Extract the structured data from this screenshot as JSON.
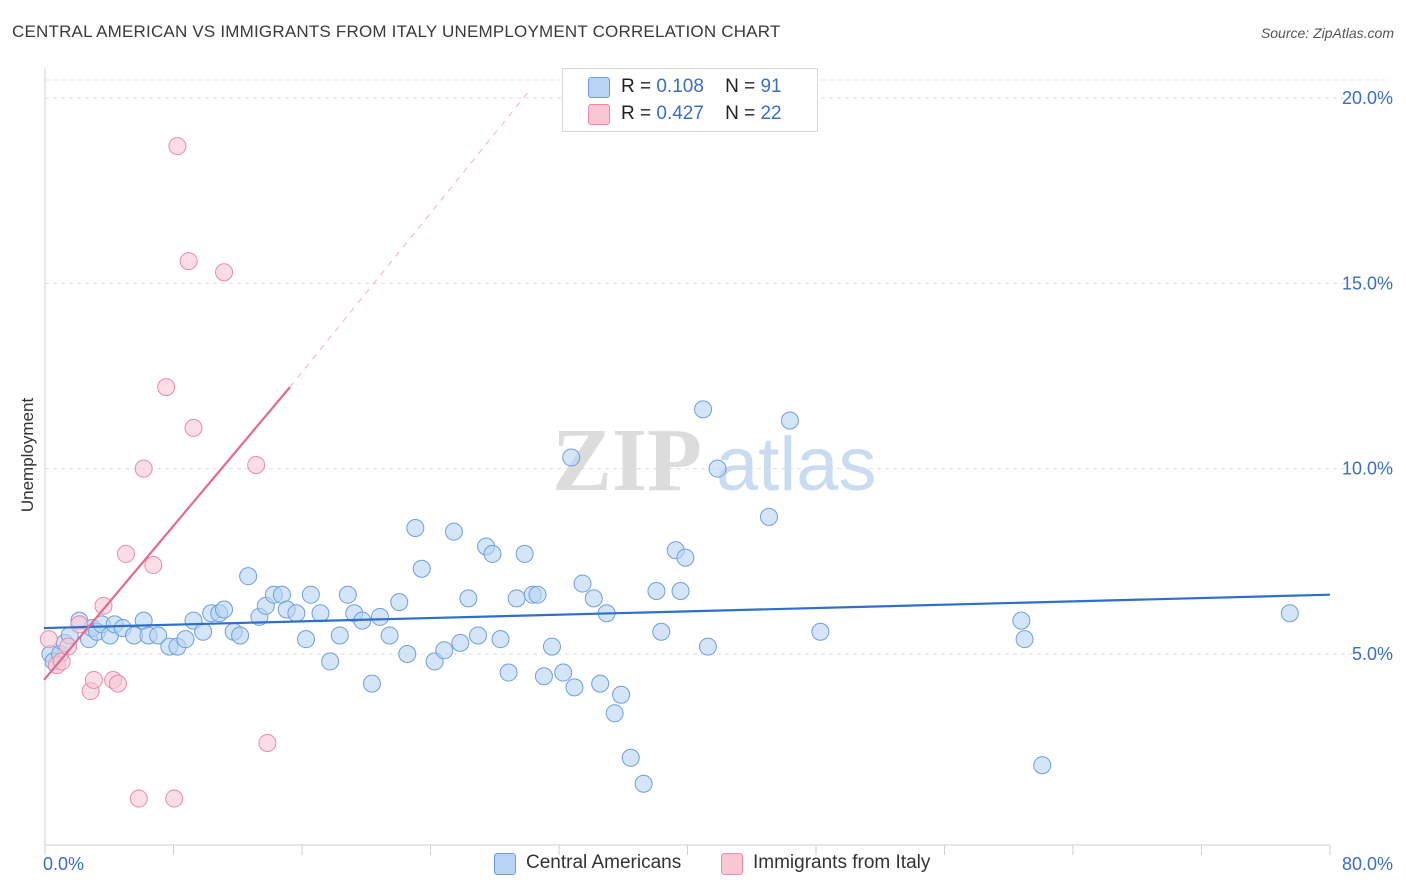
{
  "title": "CENTRAL AMERICAN VS IMMIGRANTS FROM ITALY UNEMPLOYMENT CORRELATION CHART",
  "source": "Source: ZipAtlas.com",
  "watermark": {
    "zip": "ZIP",
    "atlas": "atlas"
  },
  "legend": {
    "rows": [
      {
        "r_label": "R =",
        "r_value": "0.108",
        "n_label": "N =",
        "n_value": "91"
      },
      {
        "r_label": "R =",
        "r_value": "0.427",
        "n_label": "N =",
        "n_value": "22"
      }
    ]
  },
  "colors": {
    "blue_fill": "#b8d3f3",
    "blue_stroke": "#6e9fdc",
    "blue_line": "#2f6fcc",
    "pink_fill": "#f9c6d4",
    "pink_stroke": "#ec8aa8",
    "pink_line": "#e46a92",
    "axis_text": "#3a6fc4"
  },
  "chart_data": {
    "type": "scatter",
    "title": "CENTRAL AMERICAN VS IMMIGRANTS FROM ITALY UNEMPLOYMENT CORRELATION CHART",
    "xlabel": "",
    "ylabel": "Unemployment",
    "xlim": [
      0,
      80
    ],
    "ylim": [
      0.5,
      20.5
    ],
    "x_tick_labels": [
      "0.0%",
      "80.0%"
    ],
    "y_ticks": [
      5,
      10,
      15,
      20
    ],
    "y_tick_labels": [
      "5.0%",
      "10.0%",
      "15.0%",
      "20.0%"
    ],
    "series": [
      {
        "name": "Central Americans",
        "R": 0.108,
        "N": 91,
        "trend": {
          "x": [
            0,
            80
          ],
          "y": [
            5.7,
            6.6
          ]
        },
        "points": [
          [
            0.4,
            5.0
          ],
          [
            0.6,
            4.8
          ],
          [
            1.0,
            5.0
          ],
          [
            1.3,
            5.3
          ],
          [
            1.6,
            5.5
          ],
          [
            2.2,
            5.9
          ],
          [
            2.8,
            5.4
          ],
          [
            3.0,
            5.7
          ],
          [
            3.3,
            5.6
          ],
          [
            3.6,
            5.8
          ],
          [
            4.1,
            5.5
          ],
          [
            4.4,
            5.8
          ],
          [
            4.9,
            5.7
          ],
          [
            5.6,
            5.5
          ],
          [
            6.2,
            5.9
          ],
          [
            6.5,
            5.5
          ],
          [
            7.1,
            5.5
          ],
          [
            7.8,
            5.2
          ],
          [
            8.3,
            5.2
          ],
          [
            8.8,
            5.4
          ],
          [
            9.3,
            5.9
          ],
          [
            9.9,
            5.6
          ],
          [
            10.4,
            6.1
          ],
          [
            10.9,
            6.1
          ],
          [
            11.2,
            6.2
          ],
          [
            11.8,
            5.6
          ],
          [
            12.2,
            5.5
          ],
          [
            12.7,
            7.1
          ],
          [
            13.4,
            6.0
          ],
          [
            13.8,
            6.3
          ],
          [
            14.3,
            6.6
          ],
          [
            14.8,
            6.6
          ],
          [
            15.1,
            6.2
          ],
          [
            15.7,
            6.1
          ],
          [
            16.3,
            5.4
          ],
          [
            16.6,
            6.6
          ],
          [
            17.2,
            6.1
          ],
          [
            17.8,
            4.8
          ],
          [
            18.4,
            5.5
          ],
          [
            18.9,
            6.6
          ],
          [
            19.3,
            6.1
          ],
          [
            19.8,
            5.9
          ],
          [
            20.4,
            4.2
          ],
          [
            20.9,
            6.0
          ],
          [
            21.5,
            5.5
          ],
          [
            22.1,
            6.4
          ],
          [
            22.6,
            5.0
          ],
          [
            23.1,
            8.4
          ],
          [
            23.5,
            7.3
          ],
          [
            24.3,
            4.8
          ],
          [
            24.9,
            5.1
          ],
          [
            25.5,
            8.3
          ],
          [
            25.9,
            5.3
          ],
          [
            26.4,
            6.5
          ],
          [
            27.0,
            5.5
          ],
          [
            27.5,
            7.9
          ],
          [
            27.9,
            7.7
          ],
          [
            28.4,
            5.4
          ],
          [
            28.9,
            4.5
          ],
          [
            29.4,
            6.5
          ],
          [
            29.9,
            7.7
          ],
          [
            30.4,
            6.6
          ],
          [
            30.7,
            6.6
          ],
          [
            31.1,
            4.4
          ],
          [
            31.6,
            5.2
          ],
          [
            32.3,
            4.5
          ],
          [
            32.8,
            10.3
          ],
          [
            33.0,
            4.1
          ],
          [
            33.5,
            6.9
          ],
          [
            34.2,
            6.5
          ],
          [
            34.6,
            4.2
          ],
          [
            35.0,
            6.1
          ],
          [
            35.5,
            3.4
          ],
          [
            35.9,
            3.9
          ],
          [
            36.5,
            2.2
          ],
          [
            37.3,
            1.5
          ],
          [
            38.1,
            6.7
          ],
          [
            38.4,
            5.6
          ],
          [
            39.3,
            7.8
          ],
          [
            39.6,
            6.7
          ],
          [
            39.9,
            7.6
          ],
          [
            41.0,
            11.6
          ],
          [
            41.3,
            5.2
          ],
          [
            41.9,
            10.0
          ],
          [
            45.1,
            8.7
          ],
          [
            46.4,
            11.3
          ],
          [
            48.3,
            5.6
          ],
          [
            60.8,
            5.9
          ],
          [
            61.0,
            5.4
          ],
          [
            62.1,
            2.0
          ],
          [
            77.5,
            6.1
          ]
        ]
      },
      {
        "name": "Immigrants from Italy",
        "R": 0.427,
        "N": 22,
        "trend_solid": {
          "x": [
            0,
            15.3
          ],
          "y": [
            4.3,
            12.2
          ]
        },
        "trend_dashed": {
          "x": [
            15.3,
            30.2
          ],
          "y": [
            12.2,
            20.2
          ]
        },
        "points": [
          [
            0.3,
            5.4
          ],
          [
            0.8,
            4.7
          ],
          [
            1.1,
            4.8
          ],
          [
            1.5,
            5.2
          ],
          [
            2.2,
            5.8
          ],
          [
            2.9,
            4.0
          ],
          [
            3.1,
            4.3
          ],
          [
            3.7,
            6.3
          ],
          [
            4.3,
            4.3
          ],
          [
            4.6,
            4.2
          ],
          [
            5.1,
            7.7
          ],
          [
            5.9,
            1.1
          ],
          [
            6.2,
            10.0
          ],
          [
            6.8,
            7.4
          ],
          [
            7.6,
            12.2
          ],
          [
            8.1,
            1.1
          ],
          [
            8.3,
            18.7
          ],
          [
            9.0,
            15.6
          ],
          [
            9.3,
            11.1
          ],
          [
            11.2,
            15.3
          ],
          [
            13.2,
            10.1
          ],
          [
            13.9,
            2.6
          ]
        ]
      }
    ],
    "legend_position": "top-center"
  }
}
